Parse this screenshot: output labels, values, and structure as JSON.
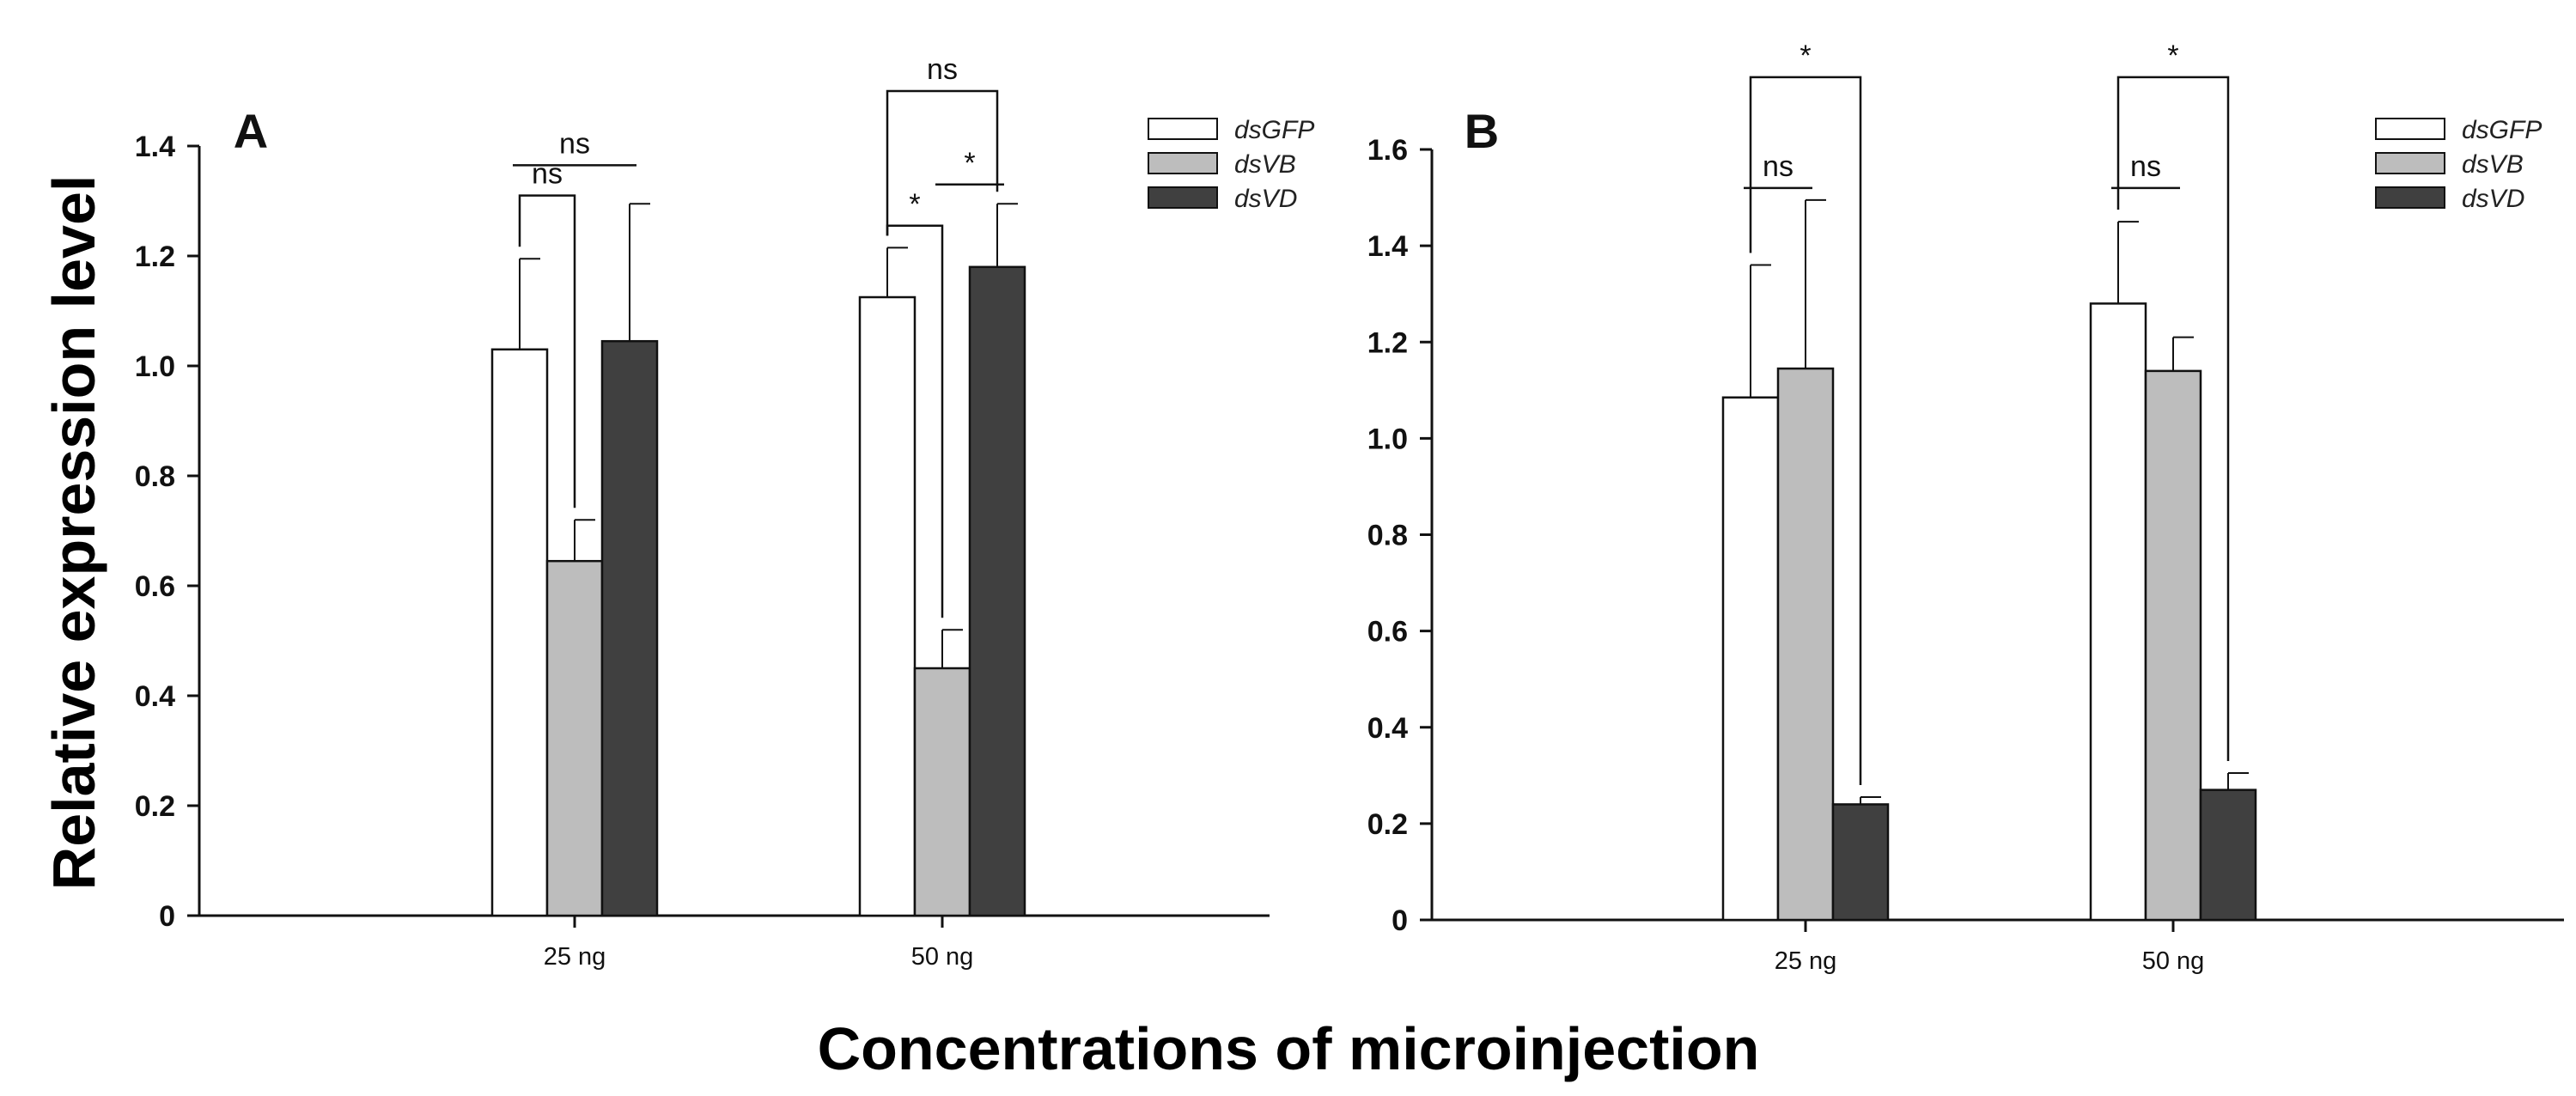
{
  "figure": {
    "ylabel": "Relative expression level",
    "xlabel": "Concentrations of microinjection"
  },
  "colors": {
    "dsGFP": "#ffffff",
    "dsVB": "#bdbdbd",
    "dsVD": "#404040",
    "stroke": "#111111"
  },
  "chart_data": [
    {
      "type": "bar",
      "panel": "A",
      "categories": [
        "25 ng",
        "50 ng"
      ],
      "series": [
        {
          "name": "dsGFP",
          "values": [
            1.03,
            1.125
          ],
          "errors": [
            0.165,
            0.09
          ]
        },
        {
          "name": "dsVB",
          "values": [
            0.645,
            0.45
          ],
          "errors": [
            0.075,
            0.07
          ]
        },
        {
          "name": "dsVD",
          "values": [
            1.045,
            1.18
          ],
          "errors": [
            0.25,
            0.115
          ]
        }
      ],
      "ylim": [
        0,
        1.4
      ],
      "yticks": [
        "0",
        "0.2",
        "0.4",
        "0.6",
        "0.8",
        "1.0",
        "1.2",
        "1.4"
      ],
      "legend": [
        "dsGFP",
        "dsVB",
        "dsVD"
      ],
      "legend_position": "top-right",
      "annotations": [
        {
          "label": "ns",
          "group": 0,
          "from": 0,
          "to": 1,
          "level": 1.31,
          "drop_from": 0.03,
          "drop_to": 0.03,
          "style": "bracket"
        },
        {
          "label": "ns",
          "group": 0,
          "from": 0,
          "to": 2,
          "level": 1.365,
          "style": "line"
        },
        {
          "label": "*",
          "group": 1,
          "from": 1,
          "to": 2,
          "level": 1.33,
          "style": "line"
        },
        {
          "label": "*",
          "group": 1,
          "from": 0,
          "to": 1,
          "level": 1.255,
          "style": "bracket"
        },
        {
          "label": "ns",
          "group": 1,
          "from": 0,
          "to": 2,
          "level": 1.5,
          "style": "bracket"
        }
      ]
    },
    {
      "type": "bar",
      "panel": "B",
      "categories": [
        "25 ng",
        "50 ng"
      ],
      "series": [
        {
          "name": "dsGFP",
          "values": [
            1.085,
            1.28
          ],
          "errors": [
            0.275,
            0.17
          ]
        },
        {
          "name": "dsVB",
          "values": [
            1.145,
            1.14
          ],
          "errors": [
            0.35,
            0.07
          ]
        },
        {
          "name": "dsVD",
          "values": [
            0.24,
            0.27
          ],
          "errors": [
            0.015,
            0.035
          ]
        }
      ],
      "ylim": [
        0,
        1.6
      ],
      "yticks": [
        "0",
        "0.2",
        "0.4",
        "0.6",
        "0.8",
        "1.0",
        "1.2",
        "1.4",
        "1.6"
      ],
      "legend": [
        "dsGFP",
        "dsVB",
        "dsVD"
      ],
      "legend_position": "top-right",
      "annotations": [
        {
          "label": "ns",
          "group": 0,
          "from": 0,
          "to": 1,
          "level": 1.52,
          "style": "line"
        },
        {
          "label": "*",
          "group": 0,
          "from": 0,
          "to": 2,
          "level": 1.75,
          "style": "bracket"
        },
        {
          "label": "ns",
          "group": 1,
          "from": 0,
          "to": 1,
          "level": 1.52,
          "style": "line"
        },
        {
          "label": "*",
          "group": 1,
          "from": 0,
          "to": 2,
          "level": 1.75,
          "style": "bracket"
        }
      ]
    }
  ]
}
